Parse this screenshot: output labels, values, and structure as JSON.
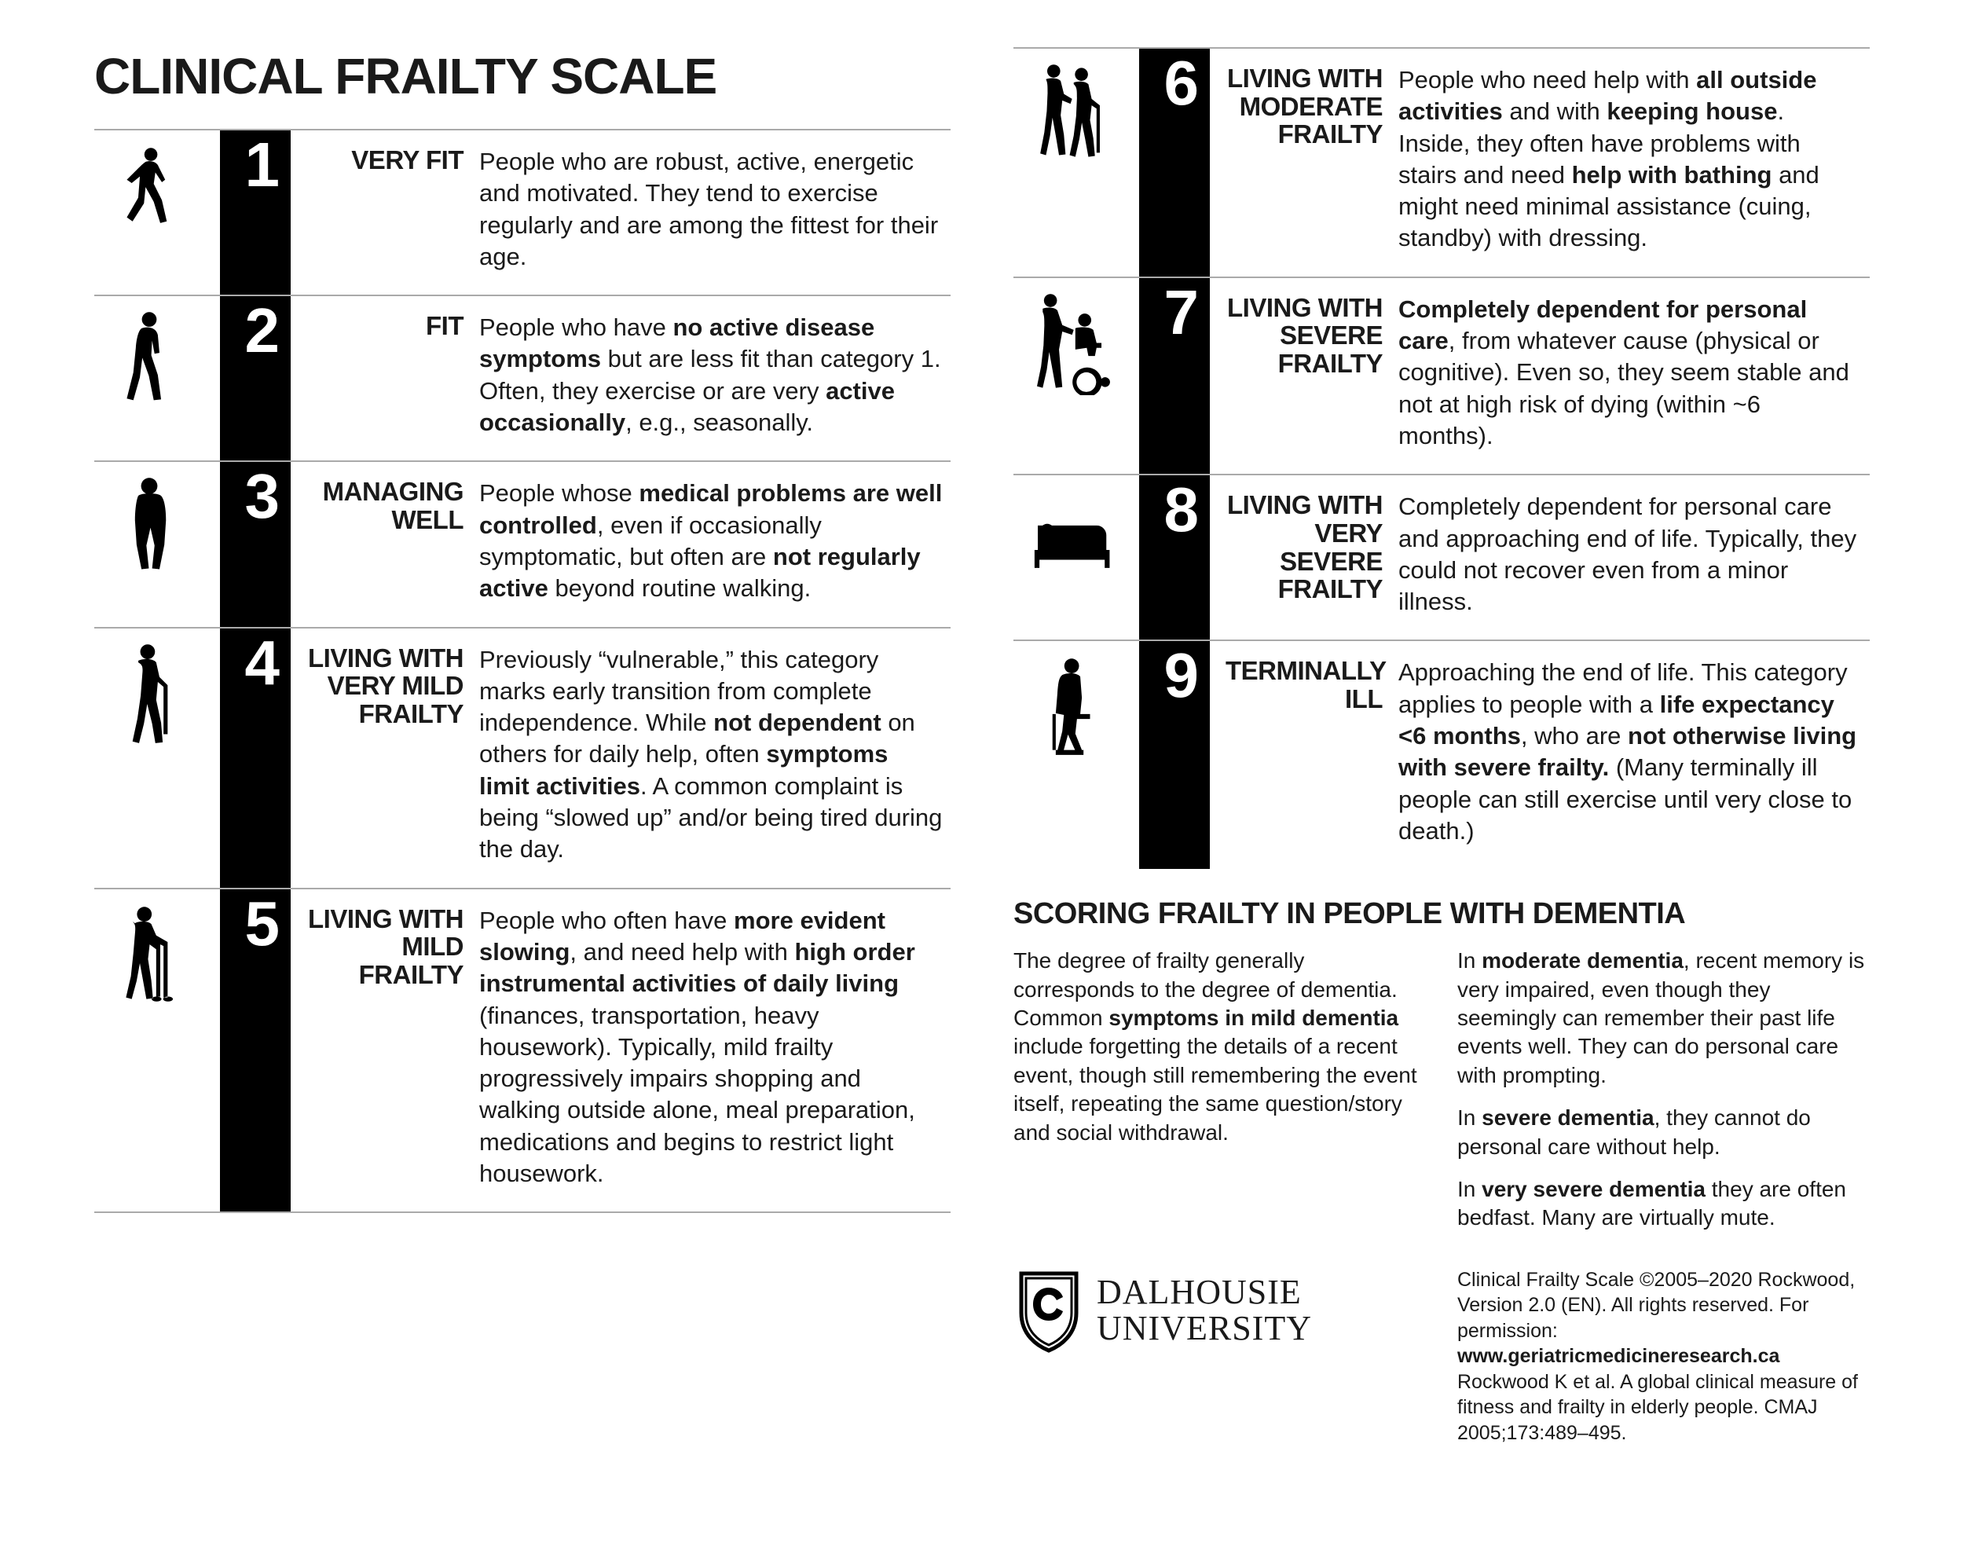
{
  "title": "CLINICAL FRAILTY SCALE",
  "rows": [
    {
      "num": "1",
      "label": "VERY FIT",
      "desc": "People who are robust, active, energetic and motivated. They tend to exercise regularly and are among the fittest for their age."
    },
    {
      "num": "2",
      "label": "FIT",
      "desc": "People who have <b>no active disease symptoms</b> but are less fit than category 1. Often, they exercise or are very <b>active occasionally</b>, e.g., seasonally."
    },
    {
      "num": "3",
      "label": "MANAGING WELL",
      "desc": "People whose <b>medical problems are well controlled</b>, even if occasionally symptomatic, but often are <b>not regularly active</b> beyond routine walking."
    },
    {
      "num": "4",
      "label": "LIVING WITH VERY MILD FRAILTY",
      "desc": "Previously “vulnerable,” this category marks early transition from complete independence. While <b>not dependent</b> on others for daily help, often <b>symptoms limit activities</b>. A common complaint is being “slowed up” and/or being tired during the day."
    },
    {
      "num": "5",
      "label": "LIVING WITH MILD FRAILTY",
      "desc": "People who often have <b>more evident slowing</b>, and need help with <b>high order instrumental activities of daily living</b> (finances, transportation, heavy housework). Typically, mild frailty progressively impairs shopping and walking outside alone, meal preparation, medications and begins to restrict light housework."
    },
    {
      "num": "6",
      "label": "LIVING WITH MODERATE FRAILTY",
      "desc": "People who need help with <b>all outside activities</b> and with <b>keeping house</b>. Inside, they often have problems with stairs and need <b>help with bathing</b> and might need minimal assistance (cuing, standby) with dressing."
    },
    {
      "num": "7",
      "label": "LIVING WITH SEVERE FRAILTY",
      "desc": "<b>Completely dependent for personal care</b>, from whatever cause (physical or cognitive). Even so, they seem stable and not at high risk of dying (within ~6 months)."
    },
    {
      "num": "8",
      "label": "LIVING WITH VERY SEVERE FRAILTY",
      "desc": "Completely dependent for personal care and approaching end of life. Typically, they could not recover even from a minor illness."
    },
    {
      "num": "9",
      "label": "TERMINALLY ILL",
      "desc": "Approaching the end of life. This category applies to people with a <b>life expectancy &lt;6 months</b>, who are <b>not otherwise living with severe frailty.</b> (Many terminally ill people can still exercise until very close to death.)"
    }
  ],
  "dementia": {
    "title": "SCORING FRAILTY IN PEOPLE WITH DEMENTIA",
    "left": "The degree of frailty generally corresponds to the degree of dementia. Common <b>symptoms in mild dementia</b> include forgetting the details of a recent event, though still remembering the event itself, repeating the same question/story and social withdrawal.",
    "right1": "In <b>moderate dementia</b>, recent memory is very impaired, even though they seemingly can remember their past life events well. They can do personal care with prompting.",
    "right2": "In <b>severe dementia</b>, they cannot do personal care without help.",
    "right3": "In <b>very severe dementia</b> they are often bedfast. Many are virtually mute."
  },
  "university": {
    "line1": "DALHOUSIE",
    "line2": "UNIVERSITY"
  },
  "credits": "Clinical Frailty Scale ©2005–2020 Rockwood, Version 2.0 (EN). All rights reserved. For permission: <b>www.geriatricmedicineresearch.ca</b><br>Rockwood K et al. A global clinical measure of fitness and frailty in elderly people. CMAJ 2005;173:489–495.",
  "colors": {
    "bg": "#ffffff",
    "text": "#1a1a1a",
    "rule": "#aaaaaa",
    "black": "#000000"
  }
}
